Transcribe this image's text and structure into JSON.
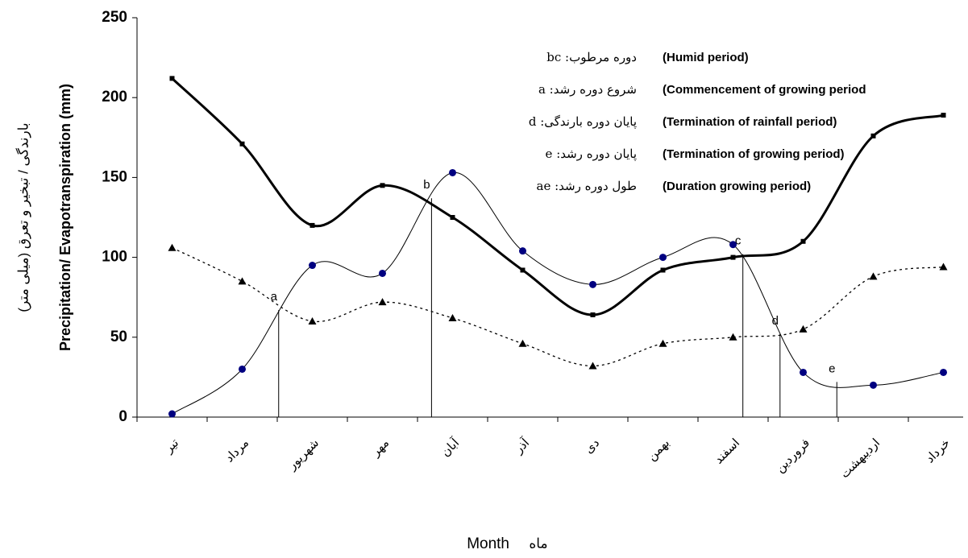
{
  "chart_data": {
    "type": "line",
    "y_label": "Precipitation/ Evapotranspiration (mm)",
    "y_label_fa": "بارندگی / تبخیر و تعرق (میلی متر)",
    "x_label": "Month",
    "x_label_fa": "ماه",
    "categories": [
      "تیر",
      "مرداد",
      "شهریور",
      "مهر",
      "آبان",
      "آذر",
      "دی",
      "بهمن",
      "اسفند",
      "فروردین",
      "اردیبهشت",
      "خرداد"
    ],
    "series": [
      {
        "color": "#000000",
        "marker": "square",
        "width": 3,
        "dash": "none",
        "values": [
          212,
          171,
          120,
          145,
          125,
          92,
          64,
          92,
          100,
          110,
          176,
          189
        ]
      },
      {
        "color": "#000080",
        "marker": "circle",
        "width": 1,
        "dash": "none",
        "values": [
          2,
          30,
          95,
          90,
          153,
          104,
          83,
          100,
          108,
          28,
          20,
          28
        ]
      },
      {
        "color": "#000000",
        "marker": "triangle",
        "width": 1.3,
        "dash": "3 4",
        "values": [
          106,
          85,
          60,
          72,
          62,
          46,
          32,
          46,
          50,
          55,
          88,
          94
        ]
      }
    ],
    "annotations": [
      {
        "label": "a",
        "x": 1.52,
        "y": 67
      },
      {
        "label": "b",
        "x": 3.7,
        "y": 137
      },
      {
        "label": "c",
        "x": 8.14,
        "y": 102
      },
      {
        "label": "d",
        "x": 8.67,
        "y": 52
      },
      {
        "label": "e",
        "x": 9.48,
        "y": 22
      }
    ],
    "notes": [
      {
        "fa": "دوره مرطوب: bc",
        "en": "(Humid period)"
      },
      {
        "fa": "شروع دوره رشد: a",
        "en": "(Commencement of growing period"
      },
      {
        "fa": "پایان دوره بارندگی: d",
        "en": "(Termination of rainfall period)"
      },
      {
        "fa": "پایان دوره رشد: e",
        "en": "(Termination of growing period)"
      },
      {
        "fa": "طول دوره رشد: ae",
        "en": "(Duration growing period)"
      }
    ],
    "ylim": [
      0,
      250
    ],
    "yticks": [
      0,
      50,
      100,
      150,
      200,
      250
    ],
    "grid": false
  }
}
